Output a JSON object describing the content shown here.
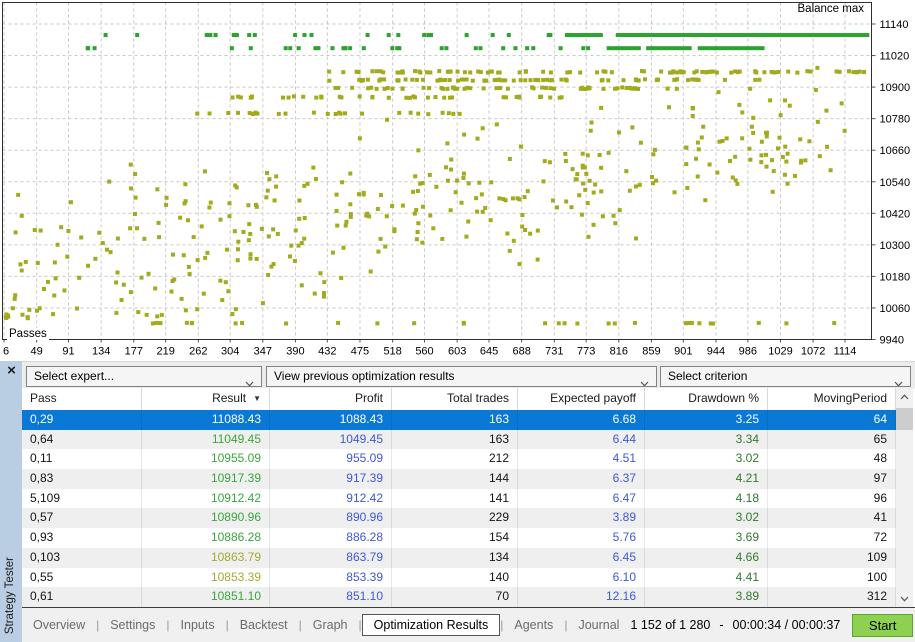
{
  "chart_data": {
    "type": "scatter",
    "title": "Balance max",
    "x_caption": "Passes",
    "x_ticks": [
      6,
      49,
      91,
      134,
      177,
      219,
      262,
      304,
      347,
      390,
      432,
      475,
      518,
      560,
      603,
      645,
      688,
      731,
      773,
      816,
      859,
      901,
      944,
      986,
      1029,
      1072,
      1114
    ],
    "y_ticks": [
      11140,
      11020,
      10900,
      10780,
      10660,
      10540,
      10420,
      10300,
      10180,
      10060,
      9940
    ],
    "x_range": [
      6,
      1148
    ],
    "y_range": [
      9935,
      11220
    ],
    "grid": "dashed",
    "legend_position": "none",
    "colors": {
      "pass_dot": "#a2aa1d",
      "max_dot": "#2ba32e",
      "grid": "#c8c8c8",
      "border": "#2f2f2f",
      "axis_text": "#000000"
    },
    "series": [
      {
        "name": "optimization-pass-results",
        "color_key": "pass_dot"
      },
      {
        "name": "balance-max-top-results",
        "color_key": "max_dot"
      }
    ],
    "generator": {
      "seed": 1337,
      "dot_size": 4,
      "cloud": {
        "n": 380,
        "x_min": 6,
        "x_max": 1114,
        "y_center_start": 10180,
        "y_center_end": 10745,
        "spread_start": 170,
        "spread_end": 95,
        "y_min": 10020,
        "y_max": 10975
      },
      "olive_rows": [
        {
          "y": 10958,
          "x1": 430,
          "x2": 1145,
          "n": 85
        },
        {
          "y": 10927,
          "x1": 425,
          "x2": 1020,
          "n": 70
        },
        {
          "y": 10896,
          "x1": 418,
          "x2": 900,
          "n": 55
        },
        {
          "y": 10862,
          "x1": 300,
          "x2": 760,
          "n": 38
        },
        {
          "y": 10800,
          "x1": 255,
          "x2": 640,
          "n": 26
        }
      ],
      "bottom_row": {
        "y": 10002,
        "x1": 120,
        "x2": 1125,
        "n": 30
      },
      "green_rows": [
        {
          "y": 11098,
          "x1": 40,
          "x2": 805,
          "singles_n": 26,
          "segments": [
            [
              745,
              795
            ],
            [
              812,
              1146
            ]
          ]
        },
        {
          "y": 11048,
          "x1": 55,
          "x2": 795,
          "singles_n": 30,
          "segments": [
            [
              800,
              845
            ],
            [
              852,
              912
            ],
            [
              920,
              1008
            ]
          ]
        }
      ]
    }
  },
  "icons": {
    "close": "×",
    "sort_desc": "▼"
  },
  "sidebar": {
    "title": "Strategy Tester"
  },
  "toolbar": {
    "expert_select": "Select expert...",
    "results_view": "View previous optimization results",
    "criterion_select": "Select criterion"
  },
  "table": {
    "columns": [
      {
        "label": "Pass",
        "align": "left"
      },
      {
        "label": "Result",
        "align": "right",
        "sort": "desc"
      },
      {
        "label": "Profit",
        "align": "right"
      },
      {
        "label": "Total trades",
        "align": "right"
      },
      {
        "label": "Expected payoff",
        "align": "right"
      },
      {
        "label": "Drawdown %",
        "align": "right"
      },
      {
        "label": "MovingPeriod",
        "align": "right"
      }
    ],
    "rows": [
      {
        "pass": "0,29",
        "result": "11088.43",
        "profit": "1088.43",
        "trades": "163",
        "payoff": "6.68",
        "drawdown": "3.25",
        "moving_period": "64",
        "result_tone": "green",
        "selected": true
      },
      {
        "pass": "0,64",
        "result": "11049.45",
        "profit": "1049.45",
        "trades": "163",
        "payoff": "6.44",
        "drawdown": "3.34",
        "moving_period": "65",
        "result_tone": "green"
      },
      {
        "pass": "0,11",
        "result": "10955.09",
        "profit": "955.09",
        "trades": "212",
        "payoff": "4.51",
        "drawdown": "3.02",
        "moving_period": "48",
        "result_tone": "green"
      },
      {
        "pass": "0,83",
        "result": "10917.39",
        "profit": "917.39",
        "trades": "144",
        "payoff": "6.37",
        "drawdown": "4.21",
        "moving_period": "97",
        "result_tone": "green"
      },
      {
        "pass": "5,109",
        "result": "10912.42",
        "profit": "912.42",
        "trades": "141",
        "payoff": "6.47",
        "drawdown": "4.18",
        "moving_period": "96",
        "result_tone": "green"
      },
      {
        "pass": "0,57",
        "result": "10890.96",
        "profit": "890.96",
        "trades": "229",
        "payoff": "3.89",
        "drawdown": "3.02",
        "moving_period": "41",
        "result_tone": "green"
      },
      {
        "pass": "0,93",
        "result": "10886.28",
        "profit": "886.28",
        "trades": "154",
        "payoff": "5.76",
        "drawdown": "3.69",
        "moving_period": "72",
        "result_tone": "green"
      },
      {
        "pass": "0,103",
        "result": "10863.79",
        "profit": "863.79",
        "trades": "134",
        "payoff": "6.45",
        "drawdown": "4.66",
        "moving_period": "109",
        "result_tone": "olive"
      },
      {
        "pass": "0,55",
        "result": "10853.39",
        "profit": "853.39",
        "trades": "140",
        "payoff": "6.10",
        "drawdown": "4.41",
        "moving_period": "100",
        "result_tone": "olive"
      },
      {
        "pass": "0,61",
        "result": "10851.10",
        "profit": "851.10",
        "trades": "70",
        "payoff": "12.16",
        "drawdown": "3.89",
        "moving_period": "312",
        "result_tone": "green"
      }
    ]
  },
  "tabs": {
    "items": [
      {
        "label": "Overview",
        "active": false
      },
      {
        "label": "Settings",
        "active": false
      },
      {
        "label": "Inputs",
        "active": false
      },
      {
        "label": "Backtest",
        "active": false
      },
      {
        "label": "Graph",
        "active": false
      },
      {
        "label": "Optimization Results",
        "active": true
      },
      {
        "label": "Agents",
        "active": false
      },
      {
        "label": "Journal",
        "active": false
      }
    ]
  },
  "status": {
    "progress": "1 152 of 1 280",
    "separator": "-",
    "time": "00:00:34 / 00:00:37"
  },
  "start_button": {
    "label": "Start"
  }
}
